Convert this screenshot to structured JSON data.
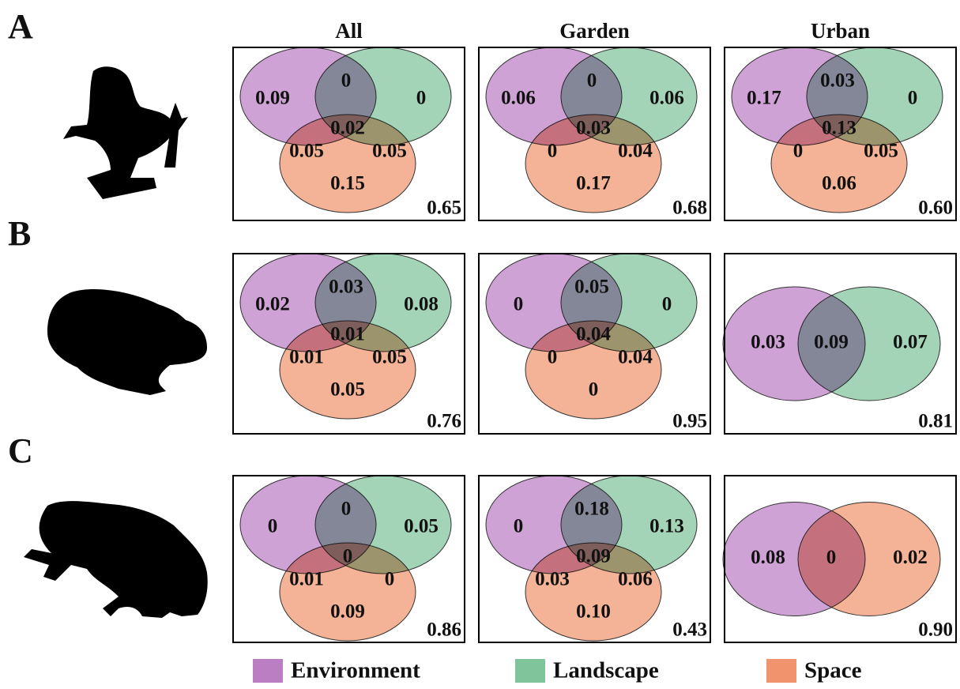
{
  "row_labels": [
    "A",
    "B",
    "C"
  ],
  "column_titles": [
    "All",
    "Garden",
    "Urban"
  ],
  "legend": [
    {
      "label": "Environment",
      "color": "#bb7ec3"
    },
    {
      "label": "Landscape",
      "color": "#80c49b"
    },
    {
      "label": "Space",
      "color": "#f0946e"
    }
  ],
  "panels": [
    [
      {
        "colors": [
          "#bb7ec3",
          "#80c49b",
          "#f0946e"
        ],
        "values": [
          "0.09",
          "0",
          "0",
          "0.02",
          "0.05",
          "0.05",
          "0.15"
        ],
        "total": "0.65"
      },
      {
        "colors": [
          "#bb7ec3",
          "#80c49b",
          "#f0946e"
        ],
        "values": [
          "0.06",
          "0",
          "0.06",
          "0.03",
          "0",
          "0.04",
          "0.17"
        ],
        "total": "0.68"
      },
      {
        "colors": [
          "#bb7ec3",
          "#80c49b",
          "#f0946e"
        ],
        "values": [
          "0.17",
          "0.03",
          "0",
          "0.13",
          "0",
          "0.05",
          "0.06"
        ],
        "total": "0.60"
      }
    ],
    [
      {
        "colors": [
          "#bb7ec3",
          "#80c49b",
          "#f0946e"
        ],
        "values": [
          "0.02",
          "0.03",
          "0.08",
          "0.01",
          "0.01",
          "0.05",
          "0.05"
        ],
        "total": "0.76"
      },
      {
        "colors": [
          "#bb7ec3",
          "#80c49b",
          "#f0946e"
        ],
        "values": [
          "0",
          "0.05",
          "0",
          "0.04",
          "0",
          "0.04",
          "0"
        ],
        "total": "0.95"
      },
      {
        "colors": [
          "#bb7ec3",
          "#80c49b"
        ],
        "values": [
          "0.03",
          "0.09",
          "0.07"
        ],
        "total": "0.81"
      }
    ],
    [
      {
        "colors": [
          "#bb7ec3",
          "#80c49b",
          "#f0946e"
        ],
        "values": [
          "0",
          "0",
          "0.05",
          "0",
          "0.01",
          "0",
          "0.09"
        ],
        "total": "0.86"
      },
      {
        "colors": [
          "#bb7ec3",
          "#80c49b",
          "#f0946e"
        ],
        "values": [
          "0",
          "0.18",
          "0.13",
          "0.09",
          "0.03",
          "0.06",
          "0.10"
        ],
        "total": "0.43"
      },
      {
        "colors": [
          "#bb7ec3",
          "#f0946e"
        ],
        "values": [
          "0.08",
          "0",
          "0.02"
        ],
        "total": "0.90"
      }
    ]
  ]
}
